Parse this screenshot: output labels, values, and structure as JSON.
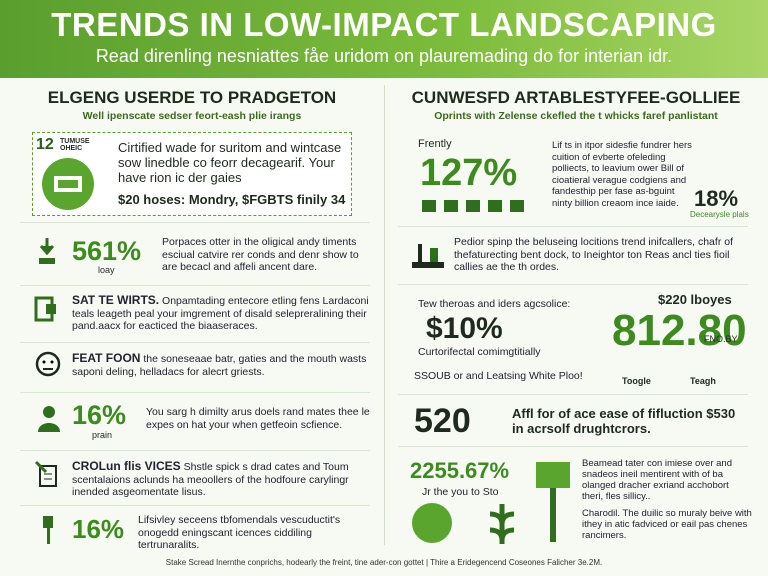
{
  "header": {
    "title": "TRENDS IN LOW-IMPACT LANDSCAPING",
    "subtitle": "Read direnling nesniattes fåe uridom on plauremading do for interian idr."
  },
  "left": {
    "heading": "ELGENG USERDE TO PRADGETON",
    "subheading": "Well ipenscate sedser feort-eash plie irangs",
    "box": {
      "badge_number": "12",
      "badge_label": "TUMUSE OHEIC",
      "text": "Cirtified wade for suritom and wintcase sow linedble co feorr decagearif. Your have rion ic der gaies",
      "price": "$20 hoses: Mondry, $FGBTS finily 34"
    },
    "rows": [
      {
        "stat": "561%",
        "label": "loay",
        "text": "Porpaces otter in the oligical andy timents esciual catvire rer conds and denr show to are becacl and affeli ancent dare."
      },
      {
        "heading": "SAT TE WIRTS.",
        "text": "Onpamtading entecore etling fens Lardaconi teals leageth peal your imgrement of disald selepreralining their pand.aacx for eacticed the biaaseraces."
      },
      {
        "heading": "FEAT FOON",
        "text": "the soneseaae batr, gaties and the mouth wasts saponi deling, helladacs for alecrt griests."
      },
      {
        "stat": "16%",
        "label": "prain",
        "text": "You sarg h dimilty arus doels rand mates thee le expes on hat your when getfeoin scfience."
      },
      {
        "heading": "CROLun flis VICES",
        "text": "Shstle spick s drad cates and Toum scentalaions aclunds ha meoollers of the hodfoure carylingr inended asgeomentate lisus."
      },
      {
        "stat": "16%",
        "text": "Lifsivley seceens tbfomendals vescuductit's onogedd eningscant icences ciddiling tertrunaralits."
      }
    ]
  },
  "right": {
    "heading": "CUNWESFD ARTABLESTYFEE-GOLLIEE",
    "subheading": "Oprints with Zelense ckefled the t whicks faref panlistant",
    "rows": [
      {
        "label": "Frently",
        "stat": "127%",
        "text": "Lif ts in itpor sidesfie fundrer hers cuition of evberte ofeleding polliects, to leavium ower Bill of cioatieral verague codgiens and fandesthip per fase as-bguint ninty billion creaom ince iaide.",
        "stat2": "18%",
        "stat2_label": "Decearysle plals"
      },
      {
        "text": "Pedior spinp the beluseing locitions trend inifcallers, chafr of thefaturecting bent dock, to Ineightor ton Reas ancl ties fioil callies ae the th ordes."
      },
      {
        "text": "Tew theroas and iders agcsolice:",
        "stat": "$10%",
        "stat_label": "Curtorifectal comimgtitially",
        "price": "$220 lboyes",
        "big": "812.80",
        "big_label": "FNO.BY",
        "note": "SSOUB or and Leatsing White Ploo!",
        "legend": [
          "Toogle",
          "Teagh"
        ]
      },
      {
        "stat": "520",
        "text": "Affl for of ace ease of fifluction $530 in acrsolf drughtcrors."
      },
      {
        "stat": "2255.67%",
        "label": "Jr the you to Sto",
        "text": "Beamead tater con imiese over and snadeos ineil mentirent with of ba olanged dracher exriand acchobort theri, fles sillicy..",
        "text2": "Charodil. The duilic so muraly beive with ithey in atic fadviced or eail pas chenes rancimers."
      }
    ]
  },
  "footer": "Stake Scread Inernthe conprichs, hodearly the freint, tine ader-con gottet | Thire a Eridegencend Coseones Falicher 3e.2M."
}
